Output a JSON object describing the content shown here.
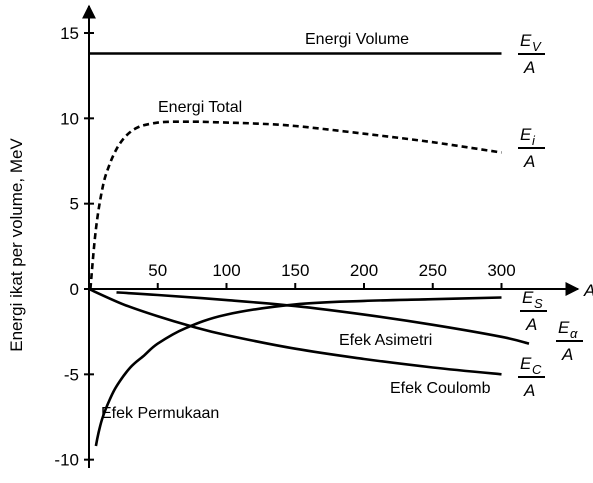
{
  "chart_data": {
    "type": "line",
    "title": "",
    "xlabel": "A",
    "ylabel": "Energi ikat per volume, MeV",
    "xlim": [
      0,
      330
    ],
    "ylim": [
      -11,
      16
    ],
    "x_ticks": [
      50,
      100,
      150,
      200,
      250,
      300
    ],
    "y_ticks": [
      -10,
      -5,
      0,
      5,
      10,
      15
    ],
    "x_tick_labels": [
      "50",
      "100",
      "150",
      "200",
      "250",
      "300"
    ],
    "y_tick_labels": [
      "-10",
      "-5",
      "0",
      "5",
      "10",
      "15"
    ],
    "grid": false,
    "series": [
      {
        "name": "Energi Volume",
        "fraction": {
          "num": "E",
          "sub": "V",
          "den": "A"
        },
        "style": "solid",
        "x": [
          0,
          300
        ],
        "y": [
          13.8,
          13.8
        ]
      },
      {
        "name": "Energi Total",
        "fraction": {
          "num": "E",
          "sub": "i",
          "den": "A"
        },
        "style": "dashed",
        "x": [
          1,
          5,
          10,
          15,
          20,
          25,
          30,
          35,
          40,
          50,
          60,
          70,
          80,
          100,
          120,
          150,
          200,
          250,
          300
        ],
        "y": [
          0,
          3.5,
          6.0,
          7.3,
          8.2,
          8.8,
          9.2,
          9.45,
          9.6,
          9.75,
          9.8,
          9.8,
          9.8,
          9.75,
          9.7,
          9.55,
          9.1,
          8.6,
          8.0
        ]
      },
      {
        "name": "Efek Permukaan",
        "fraction": {
          "num": "E",
          "sub": "S",
          "den": "A"
        },
        "style": "solid",
        "x": [
          5,
          7,
          10,
          15,
          20,
          30,
          40,
          50,
          70,
          100,
          150,
          200,
          250,
          300
        ],
        "y": [
          -9.2,
          -8.4,
          -7.5,
          -6.5,
          -5.7,
          -4.6,
          -3.9,
          -3.2,
          -2.3,
          -1.5,
          -0.9,
          -0.7,
          -0.6,
          -0.5
        ]
      },
      {
        "name": "Efek Asimetri",
        "fraction": {
          "num": "E",
          "sub": "α",
          "den": "A"
        },
        "style": "solid",
        "x": [
          20,
          50,
          100,
          150,
          200,
          250,
          300,
          320
        ],
        "y": [
          -0.2,
          -0.35,
          -0.65,
          -1.0,
          -1.5,
          -2.1,
          -2.8,
          -3.2
        ]
      },
      {
        "name": "Efek Coulomb",
        "fraction": {
          "num": "E",
          "sub": "C",
          "den": "A"
        },
        "style": "solid",
        "x": [
          0,
          25,
          50,
          75,
          100,
          150,
          200,
          250,
          300
        ],
        "y": [
          0,
          -0.9,
          -1.6,
          -2.2,
          -2.7,
          -3.5,
          -4.1,
          -4.6,
          -5.0
        ]
      }
    ]
  }
}
